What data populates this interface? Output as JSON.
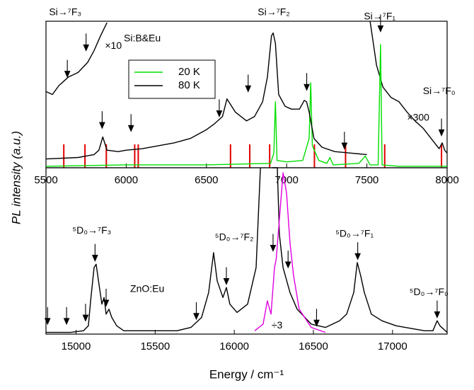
{
  "chart_data": [
    {
      "type": "line",
      "ylabel": "PL intensity (a.u.)",
      "xlim": [
        5500,
        8000
      ],
      "ylim": [
        0,
        1
      ],
      "xticks": [
        5500,
        6000,
        6500,
        7000,
        7500,
        8000
      ],
      "series": [
        {
          "name": "20 K",
          "color": "#00e000",
          "x": [
            5500,
            6000,
            6500,
            6900,
            6920,
            6930,
            6940,
            7000,
            7100,
            7140,
            7150,
            7160,
            7200,
            7250,
            7270,
            7290,
            7450,
            7490,
            7520,
            7570,
            7585,
            7595,
            7700,
            8000
          ],
          "values": [
            0.01,
            0.02,
            0.02,
            0.03,
            0.1,
            0.45,
            0.05,
            0.04,
            0.05,
            0.2,
            0.58,
            0.15,
            0.05,
            0.03,
            0.07,
            0.02,
            0.03,
            0.08,
            0.02,
            0.02,
            0.84,
            0.02,
            0.01,
            0.01
          ]
        },
        {
          "name": "80 K",
          "color": "#000000",
          "x": [
            5500,
            5700,
            5800,
            5830,
            5854,
            5880,
            5950,
            6000,
            6100,
            6200,
            6300,
            6400,
            6500,
            6550,
            6600,
            6628,
            6680,
            6750,
            6800,
            6850,
            6880,
            6905,
            6916,
            6930,
            6950,
            6990,
            7030,
            7080,
            7110,
            7124,
            7140,
            7170,
            7220,
            7300,
            7400,
            7500
          ],
          "values": [
            0.06,
            0.07,
            0.09,
            0.12,
            0.21,
            0.12,
            0.11,
            0.12,
            0.13,
            0.15,
            0.17,
            0.2,
            0.26,
            0.3,
            0.35,
            0.47,
            0.38,
            0.32,
            0.35,
            0.45,
            0.62,
            0.9,
            0.92,
            0.85,
            0.5,
            0.42,
            0.4,
            0.4,
            0.46,
            0.45,
            0.38,
            0.2,
            0.14,
            0.11,
            0.1,
            0.09
          ]
        }
      ],
      "segments": [
        {
          "color": "#000000",
          "x": [
            5500,
            5540,
            5580,
            5640,
            5700,
            5760,
            5800,
            5840,
            5880
          ],
          "values": [
            0.52,
            0.5,
            0.56,
            0.62,
            0.65,
            0.72,
            0.8,
            0.9,
            0.99
          ]
        },
        {
          "color": "#000000",
          "x": [
            7520,
            7540,
            7560,
            7600,
            7650,
            7700,
            7750,
            7800,
            7850,
            7900,
            7950,
            7969,
            7985,
            8000
          ],
          "values": [
            1.0,
            0.85,
            0.7,
            0.55,
            0.48,
            0.45,
            0.38,
            0.32,
            0.27,
            0.2,
            0.13,
            0.17,
            0.12,
            0.1
          ]
        }
      ],
      "red_lines": {
        "color": "#e00000",
        "x": [
          5611,
          5743,
          5876,
          6053,
          6075,
          6650,
          6770,
          6894,
          7173,
          7367,
          7611,
          7965
        ],
        "values": [
          0.16,
          0.16,
          0.16,
          0.16,
          0.16,
          0.16,
          0.16,
          0.16,
          0.16,
          0.16,
          0.16,
          0.16
        ]
      },
      "arrows": {
        "x": [
          5633,
          5750,
          5850,
          6030,
          6580,
          6760,
          7125,
          7360,
          7585,
          7965
        ],
        "values": [
          0.62,
          0.8,
          0.27,
          0.25,
          0.35,
          0.52,
          0.53,
          0.13,
          0.93,
          0.22
        ]
      },
      "annotations": [
        {
          "text": "Si→⁷F₃",
          "x": 5620,
          "y": 1.06
        },
        {
          "text": "Si→⁷F₂",
          "x": 6920,
          "y": 1.06
        },
        {
          "text": "Si→⁷F₁",
          "x": 7580,
          "y": 1.03
        },
        {
          "text": "Si→⁷F₀",
          "x": 7950,
          "y": 0.52
        },
        {
          "text": "Si:B&Eu",
          "x": 6100,
          "y": 0.88
        },
        {
          "text": "×10",
          "x": 5920,
          "y": 0.83
        },
        {
          "text": "×300",
          "x": 7820,
          "y": 0.34
        }
      ]
    },
    {
      "type": "line",
      "xlabel": "Energy / cm⁻¹",
      "xlim": [
        14810,
        17345
      ],
      "ylim": [
        0,
        1
      ],
      "xticks": [
        15000,
        15500,
        16000,
        16500,
        17000
      ],
      "series": [
        {
          "color": "#000000",
          "x": [
            14810,
            14966,
            15047,
            15078,
            15092,
            15114,
            15127,
            15145,
            15163,
            15177,
            15190,
            15208,
            15226,
            15257,
            15302,
            15637,
            15726,
            15793,
            15838,
            15869,
            15892,
            15928,
            15950,
            15972,
            16017,
            16084,
            16138,
            16165,
            null,
            16240,
            16272,
            16285,
            16308,
            16352,
            16397,
            16486,
            16576,
            16665,
            16710,
            16755,
            16777,
            16799,
            16822,
            16866,
            16933,
            17023,
            17202,
            17255,
            17282,
            17300,
            17345
          ],
          "values": [
            0.01,
            0.01,
            0.02,
            0.05,
            0.2,
            0.4,
            0.42,
            0.3,
            0.18,
            0.22,
            0.12,
            0.15,
            0.1,
            0.05,
            0.02,
            0.02,
            0.04,
            0.1,
            0.25,
            0.49,
            0.32,
            0.22,
            0.28,
            0.18,
            0.13,
            0.18,
            0.4,
            1.0,
            null,
            1.0,
            1.0,
            0.6,
            0.4,
            0.25,
            0.15,
            0.06,
            0.04,
            0.08,
            0.12,
            0.25,
            0.43,
            0.35,
            0.25,
            0.12,
            0.08,
            0.05,
            0.02,
            0.02,
            0.08,
            0.05,
            0.01
          ]
        },
        {
          "color": "#e000e0",
          "x": [
            16129,
            16182,
            16209,
            16232,
            16254,
            16265,
            16286,
            16308,
            16330,
            16352,
            16375,
            16410,
            16486,
            16576
          ],
          "values": [
            0.02,
            0.06,
            0.2,
            0.12,
            0.4,
            0.45,
            0.7,
            0.97,
            0.85,
            0.55,
            0.35,
            0.15,
            0.04,
            0.01
          ]
        }
      ],
      "arrows": {
        "x": [
          14820,
          14940,
          15060,
          15120,
          15190,
          15760,
          15950,
          16245,
          16340,
          16520,
          16780,
          17282
        ],
        "values": [
          0.06,
          0.06,
          0.08,
          0.44,
          0.17,
          0.09,
          0.3,
          0.5,
          0.4,
          0.05,
          0.45,
          0.1
        ]
      },
      "annotations": [
        {
          "text": "⁵D₀→⁷F₃",
          "x": 15100,
          "y": 0.62
        },
        {
          "text": "⁵D₀→⁷F₂",
          "x": 16000,
          "y": 0.58
        },
        {
          "text": "⁵D₀→⁷F₁",
          "x": 16760,
          "y": 0.6
        },
        {
          "text": "⁵D₀→⁷F₀",
          "x": 17230,
          "y": 0.25
        },
        {
          "text": "ZnO:Eu",
          "x": 15450,
          "y": 0.27
        },
        {
          "text": "÷3",
          "x": 16270,
          "y": 0.05
        }
      ]
    }
  ]
}
